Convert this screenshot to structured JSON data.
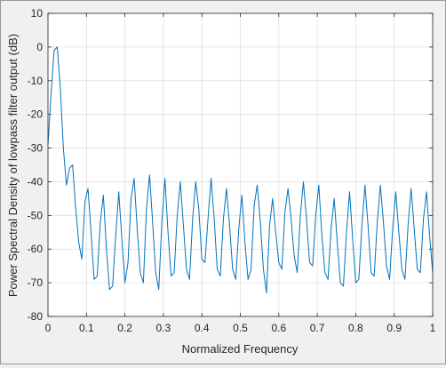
{
  "chart_data": {
    "type": "line",
    "xlabel": "Normalized Frequency",
    "ylabel": "Power Spectral Density of lowpass filter output (dB)",
    "xlim": [
      0,
      1
    ],
    "ylim": [
      -80,
      10
    ],
    "grid": true,
    "xticks": [
      "0",
      "0.1",
      "0.2",
      "0.3",
      "0.4",
      "0.5",
      "0.6",
      "0.7",
      "0.8",
      "0.9",
      "1"
    ],
    "xtick_values": [
      0,
      0.1,
      0.2,
      0.3,
      0.4,
      0.5,
      0.6,
      0.7,
      0.8,
      0.9,
      1
    ],
    "yticks": [
      "10",
      "0",
      "-10",
      "-20",
      "-30",
      "-40",
      "-50",
      "-60",
      "-70",
      "-80"
    ],
    "ytick_values": [
      10,
      0,
      -10,
      -20,
      -30,
      -40,
      -50,
      -60,
      -70,
      -80
    ],
    "series": [
      {
        "color": "#0072bd",
        "x": [
          0,
          0.008,
          0.016,
          0.024,
          0.032,
          0.04,
          0.048,
          0.056,
          0.064,
          0.072,
          0.08,
          0.088,
          0.096,
          0.104,
          0.112,
          0.12,
          0.128,
          0.136,
          0.144,
          0.152,
          0.16,
          0.168,
          0.176,
          0.184,
          0.192,
          0.2,
          0.208,
          0.216,
          0.224,
          0.232,
          0.24,
          0.248,
          0.256,
          0.264,
          0.272,
          0.28,
          0.288,
          0.296,
          0.304,
          0.312,
          0.32,
          0.328,
          0.336,
          0.344,
          0.352,
          0.36,
          0.368,
          0.376,
          0.384,
          0.392,
          0.4,
          0.408,
          0.416,
          0.424,
          0.432,
          0.44,
          0.448,
          0.456,
          0.464,
          0.472,
          0.48,
          0.488,
          0.496,
          0.504,
          0.512,
          0.52,
          0.528,
          0.536,
          0.544,
          0.552,
          0.56,
          0.568,
          0.576,
          0.584,
          0.592,
          0.6,
          0.608,
          0.616,
          0.624,
          0.632,
          0.64,
          0.648,
          0.656,
          0.664,
          0.672,
          0.68,
          0.688,
          0.696,
          0.704,
          0.712,
          0.72,
          0.728,
          0.736,
          0.744,
          0.752,
          0.76,
          0.768,
          0.776,
          0.784,
          0.792,
          0.8,
          0.808,
          0.816,
          0.824,
          0.832,
          0.84,
          0.848,
          0.856,
          0.864,
          0.872,
          0.88,
          0.888,
          0.896,
          0.904,
          0.912,
          0.92,
          0.928,
          0.936,
          0.944,
          0.952,
          0.96,
          0.968,
          0.976,
          0.984,
          0.992,
          1.0
        ],
        "values": [
          -29,
          -14,
          -1,
          0,
          -12,
          -30,
          -41,
          -36,
          -35,
          -48,
          -58,
          -63,
          -46,
          -42,
          -55,
          -69,
          -68,
          -52,
          -44,
          -60,
          -72,
          -71,
          -56,
          -43,
          -57,
          -70,
          -64,
          -45,
          -39,
          -54,
          -67,
          -70,
          -48,
          -38,
          -52,
          -67,
          -72,
          -52,
          -39,
          -55,
          -68,
          -67,
          -50,
          -40,
          -53,
          -66,
          -69,
          -51,
          -40,
          -48,
          -63,
          -64,
          -51,
          -39,
          -51,
          -66,
          -68,
          -51,
          -42,
          -53,
          -66,
          -69,
          -54,
          -44,
          -58,
          -69,
          -66,
          -47,
          -41,
          -52,
          -66,
          -73,
          -53,
          -45,
          -55,
          -64,
          -66,
          -49,
          -42,
          -51,
          -62,
          -67,
          -50,
          -40,
          -51,
          -64,
          -65,
          -50,
          -41,
          -56,
          -67,
          -69,
          -54,
          -45,
          -58,
          -70,
          -71,
          -55,
          -43,
          -57,
          -70,
          -69,
          -53,
          -41,
          -53,
          -67,
          -68,
          -52,
          -41,
          -52,
          -65,
          -69,
          -54,
          -43,
          -55,
          -66,
          -69,
          -53,
          -42,
          -54,
          -66,
          -67,
          -51,
          -43,
          -56,
          -67
        ]
      }
    ]
  }
}
